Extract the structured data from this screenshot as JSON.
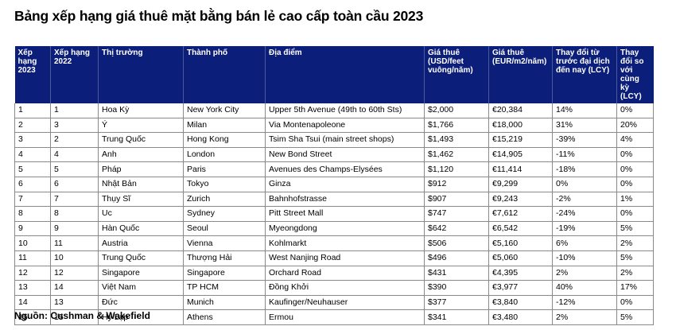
{
  "title": "Bảng xếp hạng giá thuê mặt bằng bán lẻ cao cấp toàn cầu 2023",
  "headers": [
    "Xếp hạng 2023",
    "Xếp hạng 2022",
    "Thị trường",
    "Thành phố",
    "Địa điểm",
    "Giá thuê (USD/feet vuông/năm)",
    "Giá thuê (EUR/m2/năm)",
    "Thay đổi từ trước đại dịch đến nay (LCY)",
    "Thay đổi so với cùng kỳ (LCY)"
  ],
  "rows": [
    [
      "1",
      "1",
      "Hoa Kỳ",
      "New York City",
      "Upper 5th Avenue (49th to 60th Sts)",
      "$2,000",
      "€20,384",
      "14%",
      "0%"
    ],
    [
      "2",
      "3",
      "Ý",
      "Milan",
      "Via Montenapoleone",
      "$1,766",
      "€18,000",
      "31%",
      "20%"
    ],
    [
      "3",
      "2",
      "Trung Quốc",
      "Hong Kong",
      "Tsim Sha Tsui (main street shops)",
      "$1,493",
      "€15,219",
      "-39%",
      "4%"
    ],
    [
      "4",
      "4",
      "Anh",
      "London",
      "New Bond Street",
      "$1,462",
      "€14,905",
      "-11%",
      "0%"
    ],
    [
      "5",
      "5",
      "Pháp",
      "Paris",
      "Avenues des Champs-Elysées",
      "$1,120",
      "€11,414",
      "-18%",
      "0%"
    ],
    [
      "6",
      "6",
      "Nhật Bản",
      "Tokyo",
      "Ginza",
      "$912",
      "€9,299",
      "0%",
      "0%"
    ],
    [
      "7",
      "7",
      "Thụy Sĩ",
      "Zurich",
      "Bahnhofstrasse",
      "$907",
      "€9,243",
      "-2%",
      "1%"
    ],
    [
      "8",
      "8",
      "Uc",
      "Sydney",
      "Pitt Street Mall",
      "$747",
      "€7,612",
      "-24%",
      "0%"
    ],
    [
      "9",
      "9",
      "Hàn Quốc",
      "Seoul",
      "Myeongdong",
      "$642",
      "€6,542",
      "-19%",
      "5%"
    ],
    [
      "10",
      "11",
      "Austria",
      "Vienna",
      "Kohlmarkt",
      "$506",
      "€5,160",
      "6%",
      "2%"
    ],
    [
      "11",
      "10",
      "Trung Quốc",
      "Thượng Hải",
      "West Nanjing Road",
      "$496",
      "€5,060",
      "-10%",
      "5%"
    ],
    [
      "12",
      "12",
      "Singapore",
      "Singapore",
      "Orchard Road",
      "$431",
      "€4,395",
      "2%",
      "2%"
    ],
    [
      "13",
      "14",
      "Việt Nam",
      "TP HCM",
      "Đồng Khởi",
      "$390",
      "€3,977",
      "40%",
      "17%"
    ],
    [
      "14",
      "13",
      "Đức",
      "Munich",
      "Kaufinger/Neuhauser",
      "$377",
      "€3,840",
      "-12%",
      "0%"
    ],
    [
      "15",
      "15",
      "Hy Lạp",
      "Athens",
      "Ermou",
      "$341",
      "€3,480",
      "2%",
      "5%"
    ]
  ],
  "source": "Nguồn: Cushman & Wakefield",
  "colors": {
    "header_bg": "#0b1e7a",
    "header_text": "#ffffff",
    "border": "#8a8a8a"
  }
}
